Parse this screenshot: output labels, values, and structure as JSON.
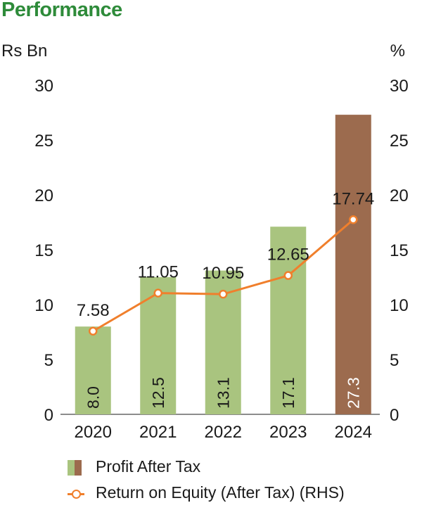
{
  "title": "Performance",
  "chart_data": {
    "type": "bar",
    "categories": [
      "2020",
      "2021",
      "2022",
      "2023",
      "2024"
    ],
    "series": [
      {
        "name": "Profit After Tax",
        "type": "bar",
        "axis": "left",
        "values": [
          8.0,
          12.5,
          13.1,
          17.1,
          27.3
        ],
        "labels": [
          "8.0",
          "12.5",
          "13.1",
          "17.1",
          "27.3"
        ]
      },
      {
        "name": "Return on Equity (After Tax) (RHS)",
        "type": "line",
        "axis": "right",
        "values": [
          7.58,
          11.05,
          10.95,
          12.65,
          17.74
        ],
        "labels": [
          "7.58",
          "11.05",
          "10.95",
          "12.65",
          "17.74"
        ]
      }
    ],
    "left_axis": {
      "unit": "Rs Bn",
      "ylim": [
        0,
        30
      ],
      "ticks": [
        "0",
        "5",
        "10",
        "15",
        "20",
        "25",
        "30"
      ]
    },
    "right_axis": {
      "unit": "%",
      "ylim": [
        0,
        30
      ],
      "ticks": [
        "0",
        "5",
        "10",
        "15",
        "20",
        "25",
        "30"
      ]
    },
    "grid": false,
    "legend_position": "bottom-left"
  },
  "colors": {
    "title": "#2e8b3a",
    "bar": "#a9c47f",
    "bar_highlight": "#9c6b4e",
    "line": "#f07f2c"
  }
}
